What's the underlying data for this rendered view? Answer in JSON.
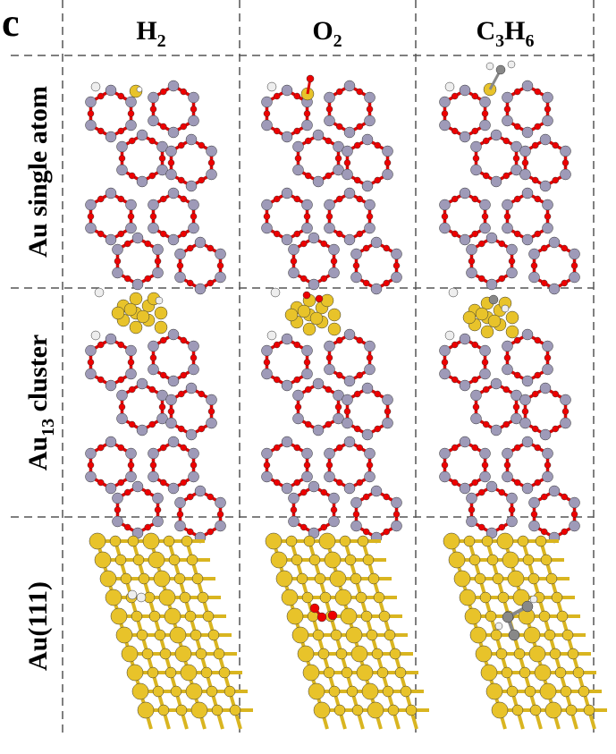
{
  "panel_label": "c",
  "columns": [
    [
      "H",
      "2"
    ],
    [
      "O",
      "2"
    ],
    [
      "C",
      "3",
      "H",
      "6"
    ]
  ],
  "rows": [
    [
      "Au single atom"
    ],
    [
      "Au",
      "13",
      " cluster"
    ],
    [
      "Au(111)"
    ]
  ]
}
